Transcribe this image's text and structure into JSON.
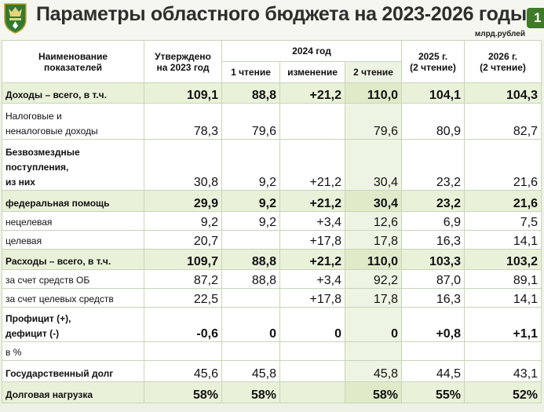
{
  "header": {
    "title": "Параметры областного бюджета на 2023-2026 годы",
    "page_number": "1",
    "units": "млрд.рублей"
  },
  "table": {
    "col_headers": {
      "name": [
        "Наименование",
        "показателей"
      ],
      "approved": [
        "Утверждено",
        "на 2023 год"
      ],
      "year2024": "2024 год",
      "r1": "1 чтение",
      "change": "изменение",
      "r2": "2 чтение",
      "y2025": [
        "2025 г.",
        "(2 чтение)"
      ],
      "y2026": [
        "2026 г.",
        "(2 чтение)"
      ]
    },
    "rows": [
      {
        "label": [
          "Доходы – всего, в т.ч."
        ],
        "cells": [
          "109,1",
          "88,8",
          "+21,2",
          "110,0",
          "104,1",
          "104,3"
        ],
        "bold": true,
        "highlight": true
      },
      {
        "label": [
          "Налоговые и",
          "неналоговые доходы"
        ],
        "cells": [
          "78,3",
          "79,6",
          "",
          "79,6",
          "80,9",
          "82,7"
        ],
        "bold": false,
        "highlight": false
      },
      {
        "label": [
          "Безвозмездные",
          "поступления,",
          "из них"
        ],
        "cells": [
          "30,8",
          "9,2",
          "+21,2",
          "30,4",
          "23,2",
          "21,6"
        ],
        "bold": true,
        "highlight": false,
        "label_bold": true,
        "values_bold": false
      },
      {
        "label": [
          "федеральная помощь"
        ],
        "cells": [
          "29,9",
          "9,2",
          "+21,2",
          "30,4",
          "23,2",
          "21,6"
        ],
        "bold": true,
        "highlight": true
      },
      {
        "label": [
          "нецелевая"
        ],
        "cells": [
          "9,2",
          "9,2",
          "+3,4",
          "12,6",
          "6,9",
          "7,5"
        ],
        "bold": false,
        "highlight": false
      },
      {
        "label": [
          "целевая"
        ],
        "cells": [
          "20,7",
          "",
          "+17,8",
          "17,8",
          "16,3",
          "14,1"
        ],
        "bold": false,
        "highlight": false
      },
      {
        "label": [
          "Расходы – всего, в т.ч."
        ],
        "cells": [
          "109,7",
          "88,8",
          "+21,2",
          "110,0",
          "103,3",
          "103,2"
        ],
        "bold": true,
        "highlight": true
      },
      {
        "label": [
          "за счет средств ОБ"
        ],
        "cells": [
          "87,2",
          "88,8",
          "+3,4",
          "92,2",
          "87,0",
          "89,1"
        ],
        "bold": false,
        "highlight": false
      },
      {
        "label": [
          "за счет целевых средств"
        ],
        "cells": [
          "22,5",
          "",
          "+17,8",
          "17,8",
          "16,3",
          "14,1"
        ],
        "bold": false,
        "highlight": false
      },
      {
        "label": [
          "Профицит (+),",
          "дефицит (-)"
        ],
        "cells": [
          "-0,6",
          "0",
          "0",
          "0",
          "+0,8",
          "+1,1"
        ],
        "bold": true,
        "highlight": false
      },
      {
        "label": [
          "в %"
        ],
        "cells": [
          "",
          "",
          "",
          "",
          "",
          ""
        ],
        "bold": false,
        "highlight": false
      },
      {
        "label": [
          "Государственный долг"
        ],
        "cells": [
          "45,6",
          "45,8",
          "",
          "45,8",
          "44,5",
          "43,1"
        ],
        "bold": true,
        "highlight": false,
        "label_bold": true,
        "values_bold": false
      },
      {
        "label": [
          "Долговая нагрузка"
        ],
        "cells": [
          "58%",
          "58%",
          "",
          "58%",
          "55%",
          "52%"
        ],
        "bold": true,
        "highlight": true
      }
    ]
  },
  "colors": {
    "highlight_row": "#e9f1d9",
    "column_2024_r2": "#eef4e3",
    "border": "#c9d4b9",
    "badge": "#3f7a2a"
  },
  "icons": {
    "emblem": "regional-coat-of-arms-icon"
  }
}
